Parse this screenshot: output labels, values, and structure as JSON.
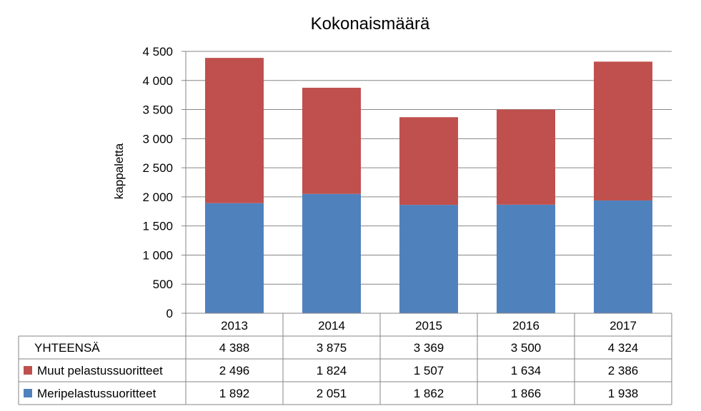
{
  "chart_data": {
    "type": "bar",
    "stacked": true,
    "title": "Kokonaismäärä",
    "ylabel": "kappaletta",
    "xlabel": "",
    "ylim": [
      0,
      4500
    ],
    "y_ticks": [
      "0",
      "500",
      "1 000",
      "1 500",
      "2 000",
      "2 500",
      "3 000",
      "3 500",
      "4 000",
      "4 500"
    ],
    "y_tick_values": [
      0,
      500,
      1000,
      1500,
      2000,
      2500,
      3000,
      3500,
      4000,
      4500
    ],
    "grid": true,
    "categories": [
      "2013",
      "2014",
      "2015",
      "2016",
      "2017"
    ],
    "series": [
      {
        "name": "Meripelastussuoritteet",
        "color": "#4F81BD",
        "values": [
          1892,
          2051,
          1862,
          1866,
          1938
        ],
        "labels": [
          "1 892",
          "2 051",
          "1 862",
          "1 866",
          "1 938"
        ]
      },
      {
        "name": "Muut pelastussuoritteet",
        "color": "#C0504D",
        "values": [
          2496,
          1824,
          1507,
          1634,
          2386
        ],
        "labels": [
          "2 496",
          "1 824",
          "1 507",
          "1 634",
          "2 386"
        ]
      }
    ],
    "totals": {
      "name": "YHTEENSÄ",
      "values": [
        4388,
        3875,
        3369,
        3500,
        4324
      ],
      "labels": [
        "4 388",
        "3 875",
        "3 369",
        "3 500",
        "4 324"
      ]
    },
    "legend_placement": "data-table"
  }
}
